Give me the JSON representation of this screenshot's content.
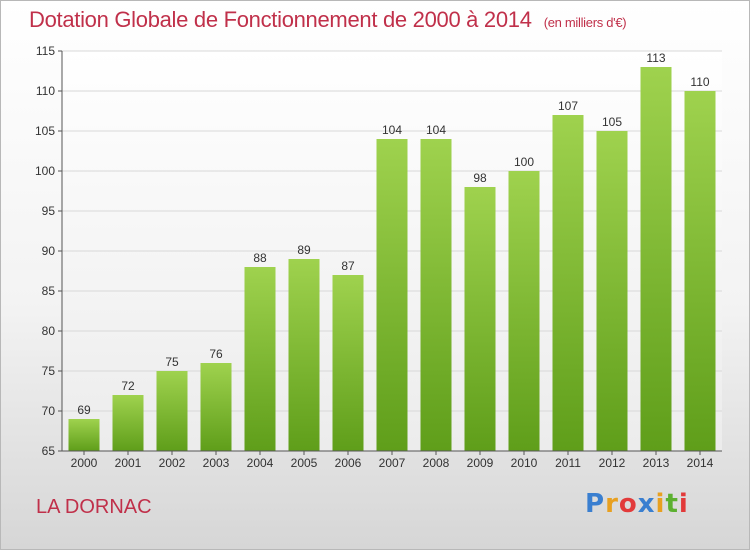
{
  "header": {
    "title": "Dotation Globale de Fonctionnement de 2000 à 2014",
    "subtitle": "(en milliers d'€)"
  },
  "footer": {
    "commune": "LA DORNAC",
    "logo": "Proxiti"
  },
  "colors": {
    "title": "#c0304a",
    "bar_top": "#9fd24e",
    "bar_bottom": "#5f9e1a"
  },
  "chart_data": {
    "type": "bar",
    "categories": [
      "2000",
      "2001",
      "2002",
      "2003",
      "2004",
      "2005",
      "2006",
      "2007",
      "2008",
      "2009",
      "2010",
      "2011",
      "2012",
      "2013",
      "2014"
    ],
    "values": [
      69,
      72,
      75,
      76,
      88,
      89,
      87,
      104,
      104,
      98,
      100,
      107,
      105,
      113,
      110
    ],
    "title": "Dotation Globale de Fonctionnement de 2000 à 2014",
    "subtitle": "(en milliers d'€)",
    "xlabel": "",
    "ylabel": "",
    "ylim": [
      65,
      115
    ],
    "yticks": [
      65,
      70,
      75,
      80,
      85,
      90,
      95,
      100,
      105,
      110,
      115
    ],
    "grid": true,
    "legend": "none"
  }
}
